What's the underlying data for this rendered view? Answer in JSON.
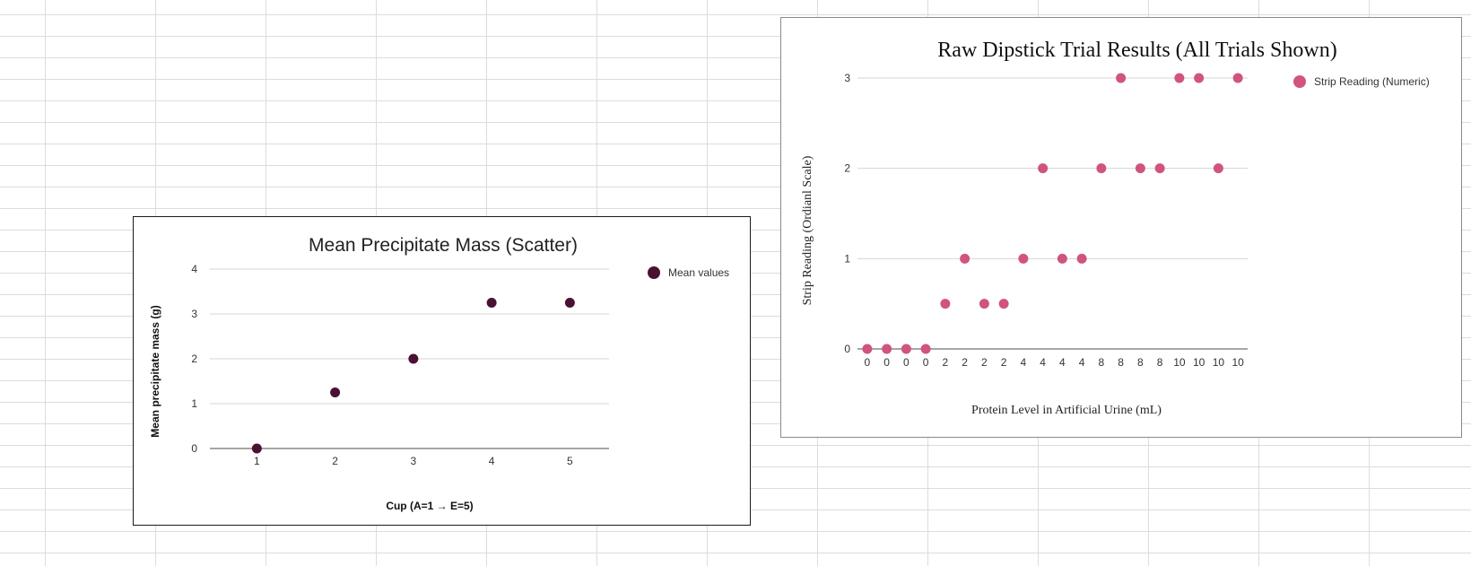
{
  "chart_data": [
    {
      "type": "scatter",
      "title": "Mean Precipitate Mass (Scatter)",
      "xlabel": "Cup (A=1 → E=5)",
      "ylabel": "Mean precipitate mass (g)",
      "xlim": [
        0.4,
        5.5
      ],
      "ylim": [
        0,
        4
      ],
      "x_ticks": [
        "1",
        "2",
        "3",
        "4",
        "5"
      ],
      "y_ticks": [
        "0",
        "1",
        "2",
        "3",
        "4"
      ],
      "grid": true,
      "legend_position": "top-right",
      "series": [
        {
          "name": "Mean values",
          "color": "#4a1133",
          "points": [
            [
              1,
              0
            ],
            [
              2,
              1.25
            ],
            [
              3,
              2
            ],
            [
              4,
              3.25
            ],
            [
              5,
              3.25
            ]
          ]
        }
      ]
    },
    {
      "type": "scatter",
      "title": "Raw Dipstick Trial Results (All Trials Shown)",
      "xlabel": "Protein Level in Artificial Urine (mL)",
      "ylabel": "Strip Reading (Ordianl Scale)",
      "ylim": [
        0,
        3
      ],
      "y_ticks": [
        "0",
        "1",
        "2",
        "3"
      ],
      "categories": [
        "0",
        "0",
        "0",
        "0",
        "2",
        "2",
        "2",
        "2",
        "4",
        "4",
        "4",
        "4",
        "8",
        "8",
        "8",
        "8",
        "10",
        "10",
        "10",
        "10"
      ],
      "grid": true,
      "legend_position": "top-right",
      "series": [
        {
          "name": "Strip Reading (Numeric)",
          "color": "#d1537f",
          "values": [
            0,
            0,
            0,
            0,
            0.5,
            1,
            0.5,
            0.5,
            1,
            2,
            1,
            1,
            2,
            3,
            2,
            2,
            3,
            3,
            2,
            3
          ]
        }
      ]
    }
  ]
}
